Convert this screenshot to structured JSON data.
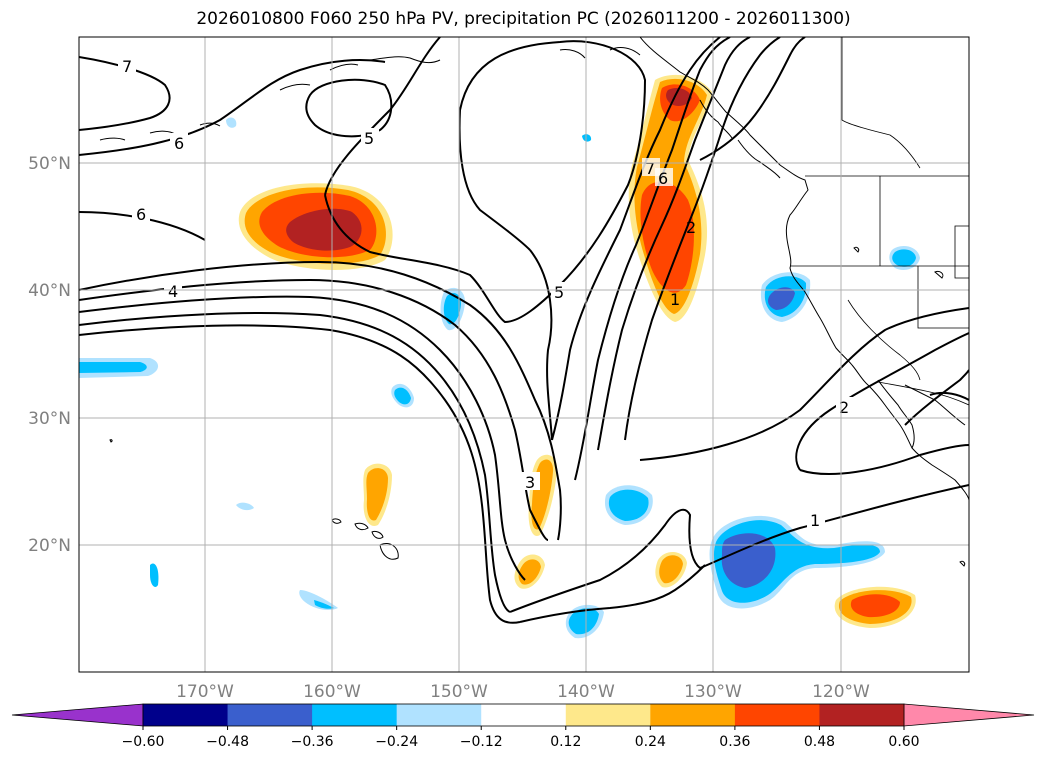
{
  "title": "2026010800 F060 250 hPa PV, precipitation PC (2026011200 - 2026011300)",
  "map": {
    "lat_labels": [
      "50°N",
      "40°N",
      "30°N",
      "20°N"
    ],
    "lon_labels": [
      "170°W",
      "160°W",
      "150°W",
      "140°W",
      "130°W",
      "120°W"
    ],
    "contour_labels": [
      "7",
      "6",
      "6",
      "5",
      "5",
      "4",
      "3",
      "7",
      "6",
      "2",
      "1",
      "2",
      "1"
    ],
    "contour_color": "#000000",
    "gridline_color": "#b0b0b0",
    "coastline_color": "#000000"
  },
  "colorbar": {
    "ticks": [
      "−0.60",
      "−0.48",
      "−0.36",
      "−0.24",
      "−0.12",
      "0.12",
      "0.24",
      "0.36",
      "0.48",
      "0.60"
    ],
    "colors": [
      "#9932cc",
      "#00008b",
      "#3a5fcd",
      "#00bfff",
      "#b0e2ff",
      "#ffffff",
      "#fee88b",
      "#ffa500",
      "#ff4500",
      "#b22222",
      "#ff88aa"
    ]
  }
}
